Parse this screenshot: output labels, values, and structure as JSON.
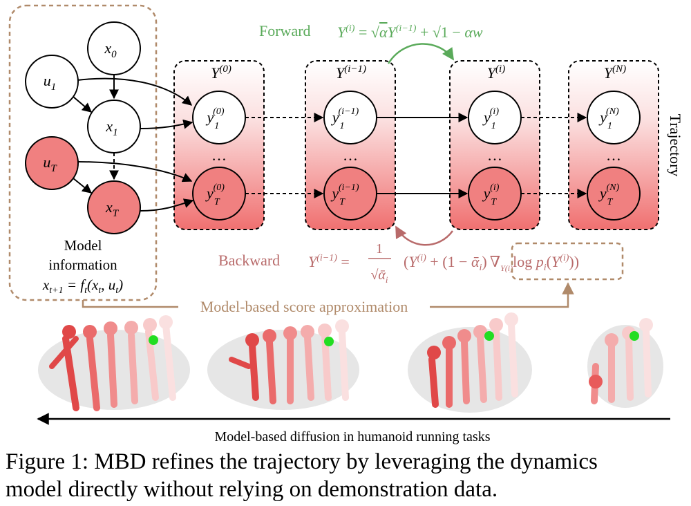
{
  "model_box": {
    "label_line1": "Model",
    "label_line2": "information",
    "dynamics": "x_{t+1} = f_t(x_t, u_t)"
  },
  "nodes": {
    "x0": "x_0",
    "u1": "u_1",
    "x1": "x_1",
    "uT": "u_T",
    "xT": "x_T"
  },
  "columns": [
    {
      "header": "Y^(0)",
      "top_node": "y_1^(0)",
      "bottom_node": "y_T^(0)"
    },
    {
      "header": "Y^(i−1)",
      "top_node": "y_1^(i−1)",
      "bottom_node": "y_T^(i−1)"
    },
    {
      "header": "Y^(i)",
      "top_node": "y_1^(i)",
      "bottom_node": "y_T^(i)"
    },
    {
      "header": "Y^(N)",
      "top_node": "y_1^(N)",
      "bottom_node": "y_T^(N)"
    }
  ],
  "ellipsis": "…",
  "forward": {
    "label": "Forward",
    "equation": "Y^(i) = √α Y^(i−1) + √(1 − α) w"
  },
  "backward": {
    "label": "Backward",
    "equation": "Y^(i−1) = 1/√ᾱ_i (Y^(i) + (1 − ᾱ_i) ∇_{Y^(i)} log p_i(Y^(i)))"
  },
  "trajectory_label": "Trajectory",
  "score_label": "Model-based score approximation",
  "humanoid_caption": "Model-based diffusion in humanoid running tasks",
  "figure_caption": {
    "line1": "Figure 1: MBD refines the trajectory by leveraging the dynamics",
    "line2": "model directly without relying on demonstration data."
  },
  "colors": {
    "forward_green": "#5aaa5a",
    "backward_rose": "#b86a6a",
    "box_tan": "#b08a6a",
    "node_red": "#f08080",
    "panel_gradient_top": "#ffffff",
    "panel_gradient_bottom": "#f07070"
  }
}
